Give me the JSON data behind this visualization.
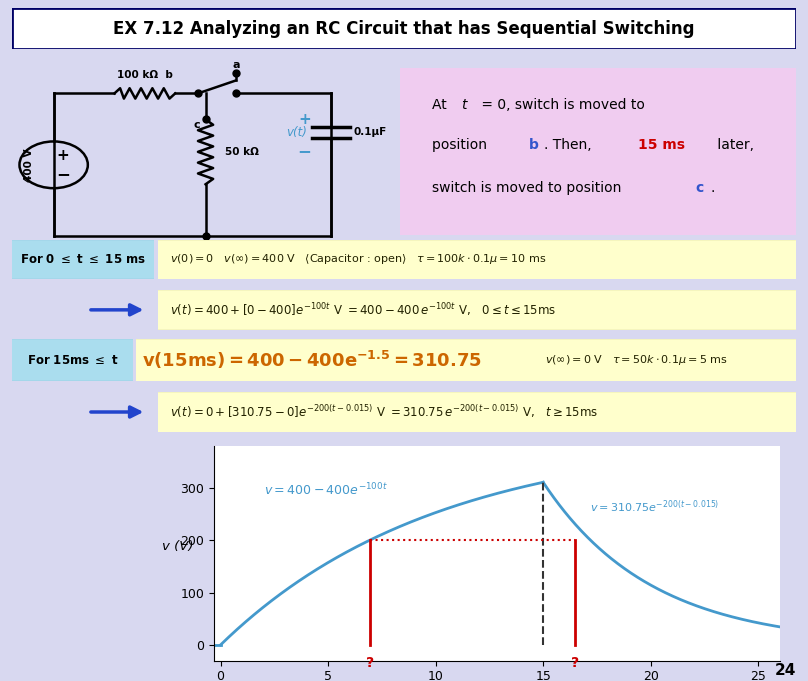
{
  "title": "EX 7.12 Analyzing an RC Circuit that has Sequential Switching",
  "slide_bg": "#d8d8f0",
  "formula_bg": "#ffffcc",
  "label_bg": "#aaddee",
  "ann_bg": "#f0ccf0",
  "curve_color": "#4499cc",
  "red_color": "#cc0000",
  "blue_color": "#3355cc",
  "dashed_color": "#333333",
  "t_question1": 6.93,
  "t_question2": 16.47,
  "t_switch": 15.0,
  "v_switch": 310.75,
  "v_dotted": 200,
  "xlim": [
    -0.3,
    26
  ],
  "ylim": [
    -30,
    380
  ],
  "yticks": [
    0,
    100,
    200,
    300
  ],
  "xticks": [
    0,
    5,
    10,
    15,
    20,
    25
  ],
  "page_num": "24"
}
